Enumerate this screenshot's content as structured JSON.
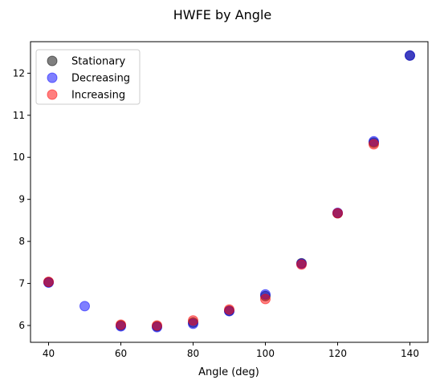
{
  "chart_data": {
    "type": "scatter",
    "title": "HWFE by Angle",
    "xlabel": "Angle (deg)",
    "ylabel": "",
    "xlim": [
      35,
      145
    ],
    "ylim": [
      5.6,
      12.75
    ],
    "xticks": [
      40,
      60,
      80,
      100,
      120,
      140
    ],
    "yticks": [
      6,
      7,
      8,
      9,
      10,
      11,
      12
    ],
    "grid": false,
    "legend_position": "top-left",
    "series": [
      {
        "name": "Stationary",
        "color": "#000000",
        "opacity": 0.5,
        "x": [
          40,
          60,
          70,
          80,
          90,
          100,
          110,
          120,
          130,
          140
        ],
        "y": [
          7.03,
          6.0,
          5.98,
          6.07,
          6.35,
          6.7,
          7.48,
          8.67,
          10.35,
          12.42
        ]
      },
      {
        "name": "Decreasing",
        "color": "#0000ff",
        "opacity": 0.5,
        "x": [
          40,
          50,
          60,
          70,
          80,
          90,
          100,
          110,
          120,
          130,
          140
        ],
        "y": [
          7.02,
          6.46,
          5.98,
          5.96,
          6.04,
          6.34,
          6.74,
          7.47,
          8.68,
          10.38,
          12.42
        ]
      },
      {
        "name": "Increasing",
        "color": "#ff0000",
        "opacity": 0.5,
        "x": [
          40,
          60,
          70,
          80,
          90,
          100,
          110,
          120,
          130
        ],
        "y": [
          7.04,
          6.02,
          6.0,
          6.12,
          6.38,
          6.63,
          7.45,
          8.67,
          10.31
        ]
      }
    ]
  }
}
